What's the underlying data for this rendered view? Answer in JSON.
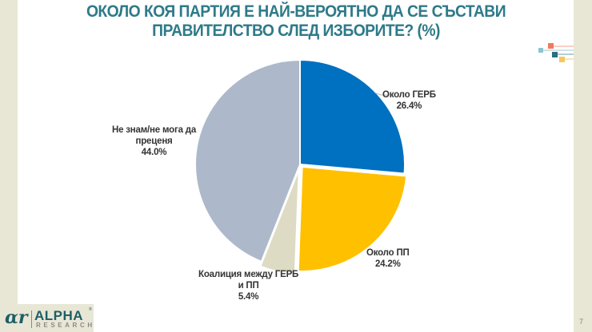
{
  "slide": {
    "title_lines": [
      "ОКОЛО КОЯ ПАРТИЯ Е НАЙ-ВЕРОЯТНО ДА СЕ СЪСТАВИ",
      "ПРАВИТЕЛСТВО СЛЕД ИЗБОРИТЕ? (%)"
    ],
    "page_number": "7",
    "logo": {
      "mark": "ɑr",
      "name": "ALPHA",
      "sub": "RESEARCH",
      "reg": "®"
    },
    "colors": {
      "title": "#2e7a88",
      "side": "#e8e6d5"
    }
  },
  "chart_data": {
    "type": "pie",
    "title": "ОКОЛО КОЯ ПАРТИЯ Е НАЙ-ВЕРОЯТНО ДА СЕ СЪСТАВИ ПРАВИТЕЛСТВО СЛЕД ИЗБОРИТЕ? (%)",
    "unit": "%",
    "start_angle": "12 o'clock, clockwise",
    "slices": [
      {
        "label": "Около ГЕРБ",
        "value": 26.4,
        "value_label": "26.4%",
        "color": "#0070c0",
        "explode": 0
      },
      {
        "label": "Около ПП",
        "value": 24.2,
        "value_label": "24.2%",
        "color": "#ffc000",
        "explode": 4
      },
      {
        "label": "Коалиция между ГЕРБ и ПП",
        "value": 5.4,
        "value_label": "5.4%",
        "color": "#dddbc3",
        "explode": 6
      },
      {
        "label": "Не знам/не мога да преценя",
        "value": 44.0,
        "value_label": "44.0%",
        "color": "#adb9ca",
        "explode": 0
      }
    ],
    "legend": "none (data labels beside slices)"
  },
  "labels": {
    "gerb": {
      "line1": "Около ГЕРБ",
      "line2": "26.4%"
    },
    "pp": {
      "line1": "Около ПП",
      "line2": "24.2%"
    },
    "coalition": {
      "line1": "Коалиция между ГЕРБ",
      "line2": "и ПП",
      "line3": "5.4%"
    },
    "dontknow": {
      "line1": "Не знам/не мога да",
      "line2": "преценя",
      "line3": "44.0%"
    }
  }
}
